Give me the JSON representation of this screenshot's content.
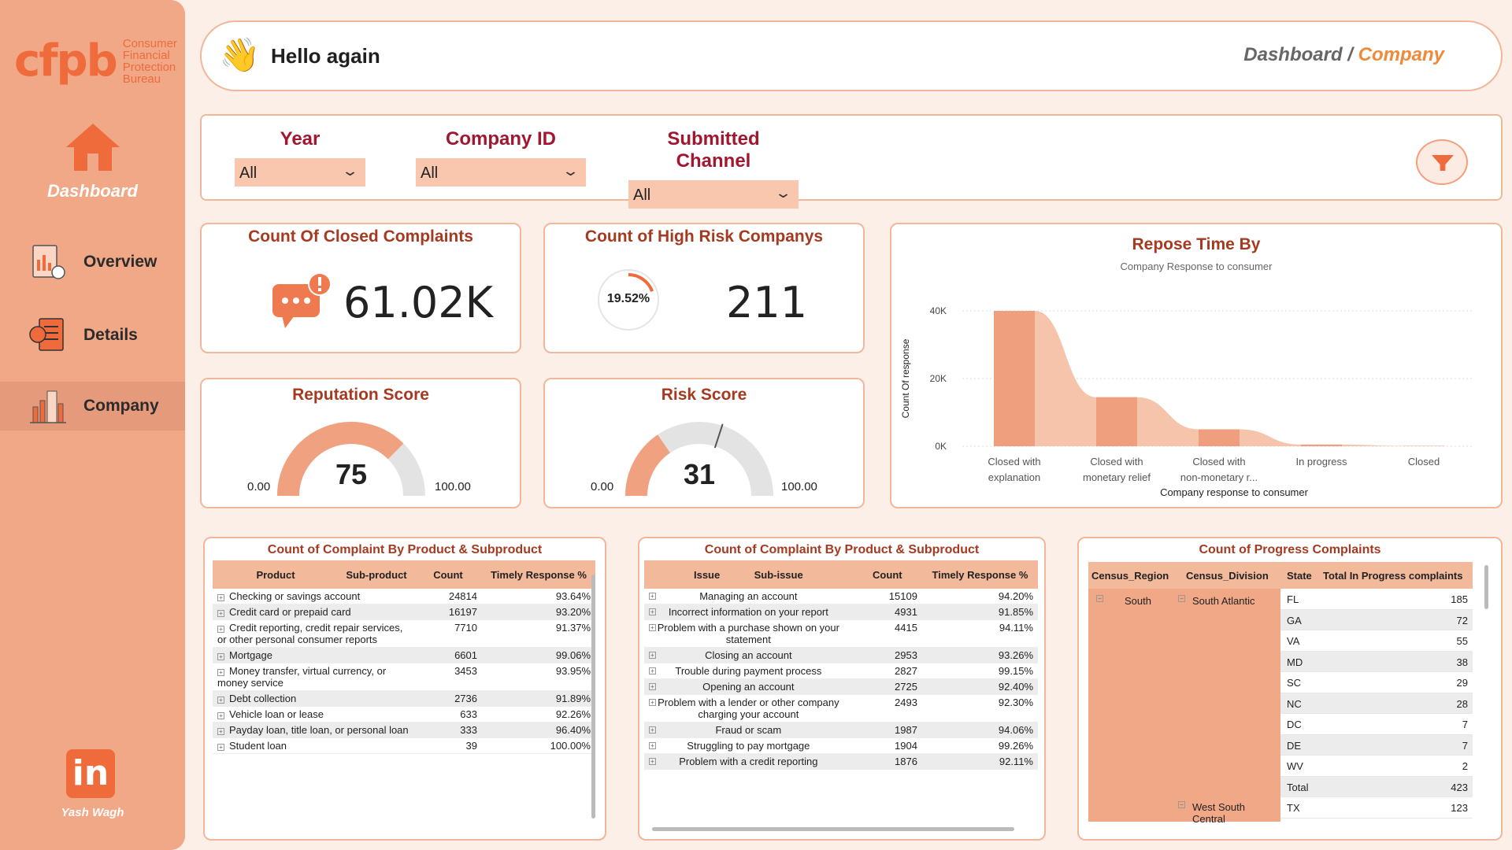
{
  "sidebar": {
    "logo_mark": "cfpb",
    "logo_lines": [
      "Consumer",
      "Financial",
      "Protection",
      "Bureau"
    ],
    "dashboard_label": "Dashboard",
    "items": [
      {
        "label": "Overview"
      },
      {
        "label": "Details"
      },
      {
        "label": "Company"
      }
    ],
    "linkedin": "in",
    "author": "Yash Wagh"
  },
  "header": {
    "greeting": "Hello again",
    "breadcrumb_root": "Dashboard",
    "breadcrumb_sep": " / ",
    "breadcrumb_current": "Company"
  },
  "filters": {
    "year": {
      "label": "Year",
      "value": "All"
    },
    "company_id": {
      "label": "Company ID",
      "value": "All"
    },
    "channel": {
      "label": "Submitted Channel",
      "value": "All"
    }
  },
  "kpis": {
    "closed": {
      "title": "Count Of Closed Complaints",
      "value": "61.02K"
    },
    "high_risk": {
      "title": "Count of High Risk Companys",
      "percent_label": "19.52%",
      "percent": 19.52,
      "value": "211"
    },
    "reputation": {
      "title": "Reputation Score",
      "value": "75",
      "min": "0.00",
      "max": "100.00",
      "fraction": 0.75
    },
    "risk": {
      "title": "Risk Score",
      "value": "31",
      "min": "0.00",
      "max": "100.00",
      "fraction": 0.31,
      "target_fraction": 0.6
    }
  },
  "chart_data": {
    "type": "area",
    "title": "Repose Time By",
    "subtitle": "Company Response to consumer",
    "xlabel": "Company response to consumer",
    "ylabel": "Count Of response",
    "categories": [
      "Closed with explanation",
      "Closed with monetary relief",
      "Closed with non-monetary r...",
      "In progress",
      "Closed"
    ],
    "values": [
      40000,
      14500,
      5000,
      500,
      100
    ],
    "ylim": [
      0,
      40000
    ],
    "yticks": [
      "0K",
      "20K",
      "40K"
    ],
    "grid": true
  },
  "table1": {
    "title": "Count of Complaint By Product & Subproduct",
    "headers": [
      "Product",
      "Sub-product",
      "Count",
      "Timely Response %"
    ],
    "rows": [
      [
        "Checking or savings account",
        "24814",
        "93.64%"
      ],
      [
        "Credit card or prepaid card",
        "16197",
        "93.20%"
      ],
      [
        "Credit reporting, credit repair services, or other personal consumer reports",
        "7710",
        "91.37%"
      ],
      [
        "Mortgage",
        "6601",
        "99.06%"
      ],
      [
        "Money transfer, virtual currency, or money service",
        "3453",
        "93.95%"
      ],
      [
        "Debt collection",
        "2736",
        "91.89%"
      ],
      [
        "Vehicle loan or lease",
        "633",
        "92.26%"
      ],
      [
        "Payday loan, title loan, or personal loan",
        "333",
        "96.40%"
      ],
      [
        "Student loan",
        "39",
        "100.00%"
      ]
    ]
  },
  "table2": {
    "title": "Count of Complaint By Product & Subproduct",
    "headers": [
      "Issue",
      "Sub-issue",
      "Count",
      "Timely Response %"
    ],
    "rows": [
      [
        "Managing an account",
        "15109",
        "94.20%"
      ],
      [
        "Incorrect information on your report",
        "4931",
        "91.85%"
      ],
      [
        "Problem with a purchase shown on your statement",
        "4415",
        "94.11%"
      ],
      [
        "Closing an account",
        "2953",
        "93.26%"
      ],
      [
        "Trouble during payment process",
        "2827",
        "99.15%"
      ],
      [
        "Opening an account",
        "2725",
        "92.40%"
      ],
      [
        "Problem with a lender or other company charging your account",
        "2493",
        "92.30%"
      ],
      [
        "Fraud or scam",
        "1987",
        "94.06%"
      ],
      [
        "Struggling to pay mortgage",
        "1904",
        "99.26%"
      ],
      [
        "Problem with a credit reporting",
        "1876",
        "92.11%"
      ]
    ]
  },
  "table3": {
    "title": "Count of Progress Complaints",
    "headers": [
      "Census_Region",
      "Census_Division",
      "State",
      "Total In Progress  complaints"
    ],
    "region": "South",
    "division": "South Atlantic",
    "division2": "West South Central",
    "rows": [
      [
        "FL",
        "185"
      ],
      [
        "GA",
        "72"
      ],
      [
        "VA",
        "55"
      ],
      [
        "MD",
        "38"
      ],
      [
        "SC",
        "29"
      ],
      [
        "NC",
        "28"
      ],
      [
        "DC",
        "7"
      ],
      [
        "DE",
        "7"
      ],
      [
        "WV",
        "2"
      ],
      [
        "Total",
        "423"
      ],
      [
        "TX",
        "123"
      ]
    ]
  }
}
